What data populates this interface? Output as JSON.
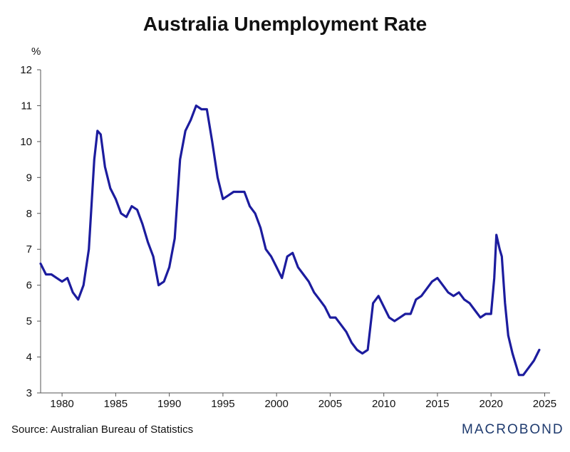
{
  "chart_data": {
    "type": "line",
    "title": "Australia Unemployment Rate",
    "ylabel": "%",
    "xlabel": "",
    "source": "Source: Australian Bureau of Statistics",
    "brand": "MACROBOND",
    "xlim": [
      1978,
      2025.5
    ],
    "ylim": [
      3,
      12
    ],
    "x_ticks": [
      1980,
      1985,
      1990,
      1995,
      2000,
      2005,
      2010,
      2015,
      2020,
      2025
    ],
    "y_ticks": [
      3,
      4,
      5,
      6,
      7,
      8,
      9,
      10,
      11,
      12
    ],
    "grid": false,
    "line_color": "#1c1c9e",
    "series": [
      {
        "x": [
          1978.0,
          1978.5,
          1979.0,
          1979.5,
          1980.0,
          1980.5,
          1981.0,
          1981.5,
          1982.0,
          1982.5,
          1983.0,
          1983.3,
          1983.6,
          1984.0,
          1984.5,
          1985.0,
          1985.5,
          1986.0,
          1986.5,
          1987.0,
          1987.5,
          1988.0,
          1988.5,
          1989.0,
          1989.5,
          1990.0,
          1990.5,
          1991.0,
          1991.5,
          1992.0,
          1992.5,
          1993.0,
          1993.5,
          1994.0,
          1994.5,
          1995.0,
          1995.5,
          1996.0,
          1996.5,
          1997.0,
          1997.5,
          1998.0,
          1998.5,
          1999.0,
          1999.5,
          2000.0,
          2000.5,
          2001.0,
          2001.5,
          2002.0,
          2002.5,
          2003.0,
          2003.5,
          2004.0,
          2004.5,
          2005.0,
          2005.5,
          2006.0,
          2006.5,
          2007.0,
          2007.5,
          2008.0,
          2008.5,
          2009.0,
          2009.5,
          2010.0,
          2010.5,
          2011.0,
          2011.5,
          2012.0,
          2012.5,
          2013.0,
          2013.5,
          2014.0,
          2014.5,
          2015.0,
          2015.5,
          2016.0,
          2016.5,
          2017.0,
          2017.5,
          2018.0,
          2018.5,
          2019.0,
          2019.5,
          2020.0,
          2020.3,
          2020.5,
          2020.8,
          2021.0,
          2021.3,
          2021.6,
          2022.0,
          2022.3,
          2022.6,
          2023.0,
          2023.5,
          2024.0,
          2024.5
        ],
        "y": [
          6.6,
          6.3,
          6.3,
          6.2,
          6.1,
          6.2,
          5.8,
          5.6,
          6.0,
          7.0,
          9.5,
          10.3,
          10.2,
          9.3,
          8.7,
          8.4,
          8.0,
          7.9,
          8.2,
          8.1,
          7.7,
          7.2,
          6.8,
          6.0,
          6.1,
          6.5,
          7.3,
          9.5,
          10.3,
          10.6,
          11.0,
          10.9,
          10.9,
          10.0,
          9.0,
          8.4,
          8.5,
          8.6,
          8.6,
          8.6,
          8.2,
          8.0,
          7.6,
          7.0,
          6.8,
          6.5,
          6.2,
          6.8,
          6.9,
          6.5,
          6.3,
          6.1,
          5.8,
          5.6,
          5.4,
          5.1,
          5.1,
          4.9,
          4.7,
          4.4,
          4.2,
          4.1,
          4.2,
          5.5,
          5.7,
          5.4,
          5.1,
          5.0,
          5.1,
          5.2,
          5.2,
          5.6,
          5.7,
          5.9,
          6.1,
          6.2,
          6.0,
          5.8,
          5.7,
          5.8,
          5.6,
          5.5,
          5.3,
          5.1,
          5.2,
          5.2,
          6.2,
          7.4,
          7.0,
          6.8,
          5.5,
          4.6,
          4.1,
          3.8,
          3.5,
          3.5,
          3.7,
          3.9,
          4.2
        ]
      }
    ]
  }
}
